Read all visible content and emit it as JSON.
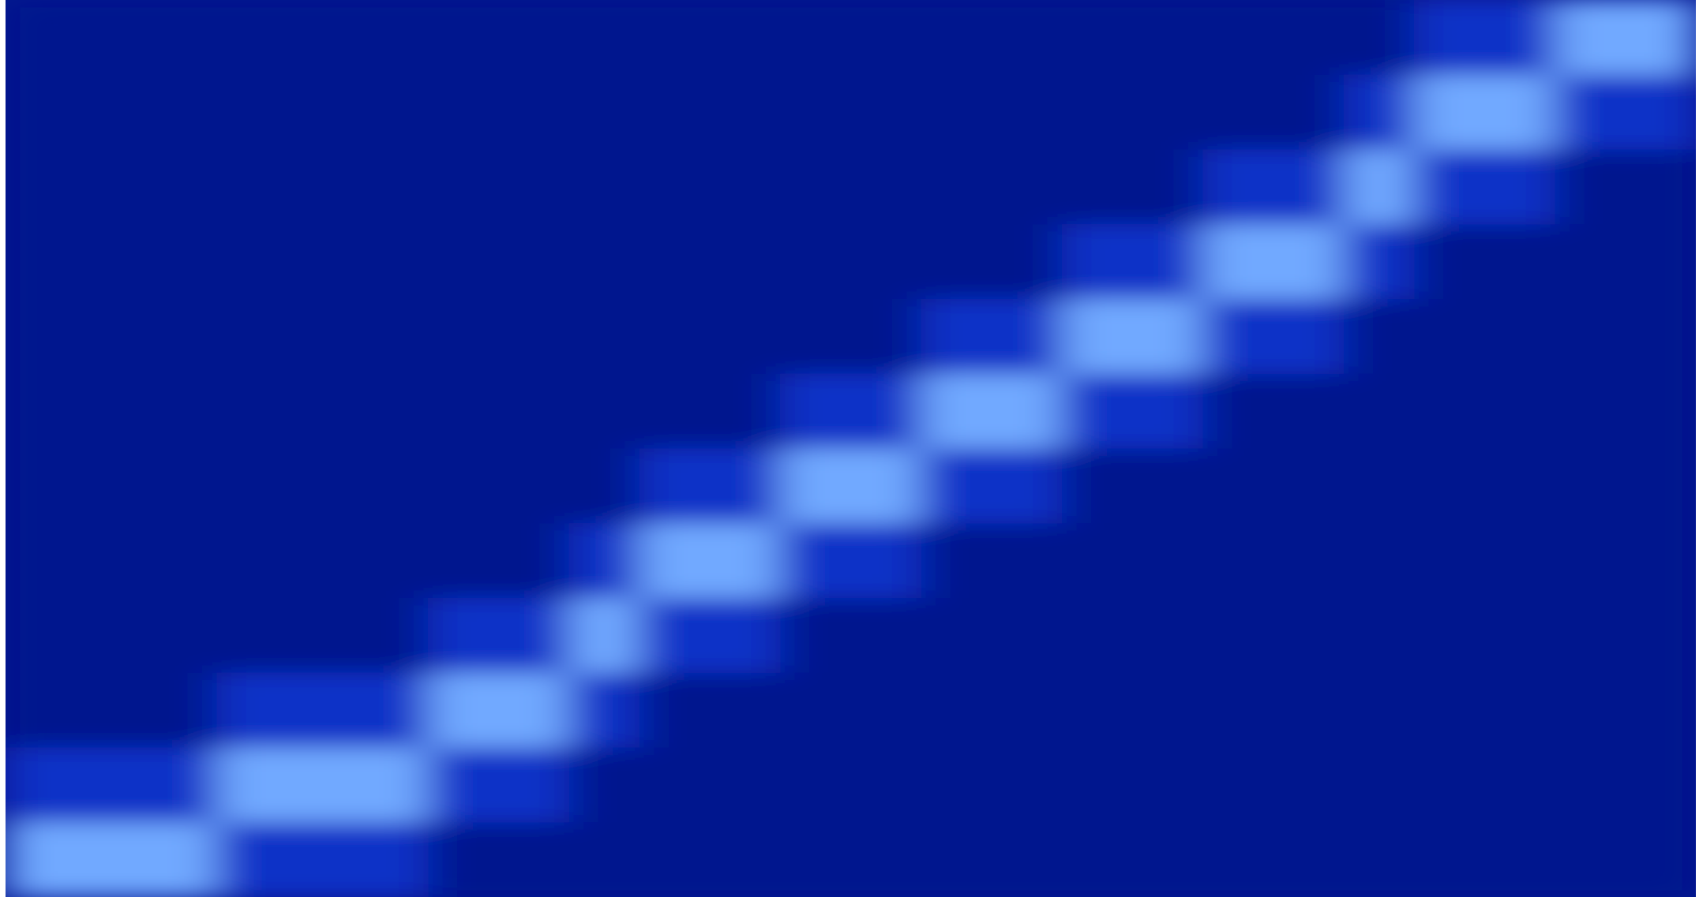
{
  "chart_data": {
    "type": "heatmap",
    "colorscale": [
      "#03148e",
      "#1f4dff",
      "#a8e6ff"
    ],
    "values": [
      [
        0,
        0,
        0,
        0,
        0,
        0,
        0,
        0,
        0,
        0,
        0,
        0,
        0,
        0,
        0,
        0,
        0,
        0,
        0,
        0,
        0.25,
        0.25,
        0.8,
        0.8
      ],
      [
        0,
        0,
        0,
        0,
        0,
        0,
        0,
        0,
        0,
        0,
        0,
        0,
        0,
        0,
        0,
        0,
        0,
        0,
        0,
        0.25,
        0.8,
        0.8,
        0.25,
        0.25
      ],
      [
        0,
        0,
        0,
        0,
        0,
        0,
        0,
        0,
        0,
        0,
        0,
        0,
        0,
        0,
        0,
        0,
        0,
        0.25,
        0.25,
        0.8,
        0.25,
        0.25,
        0,
        0
      ],
      [
        0,
        0,
        0,
        0,
        0,
        0,
        0,
        0,
        0,
        0,
        0,
        0,
        0,
        0,
        0,
        0.25,
        0.25,
        0.8,
        0.8,
        0.25,
        0,
        0,
        0,
        0
      ],
      [
        0,
        0,
        0,
        0,
        0,
        0,
        0,
        0,
        0,
        0,
        0,
        0,
        0,
        0.25,
        0.25,
        0.8,
        0.8,
        0.25,
        0.25,
        0,
        0,
        0,
        0,
        0
      ],
      [
        0,
        0,
        0,
        0,
        0,
        0,
        0,
        0,
        0,
        0,
        0,
        0.25,
        0.25,
        0.8,
        0.8,
        0.25,
        0.25,
        0,
        0,
        0,
        0,
        0,
        0,
        0
      ],
      [
        0,
        0,
        0,
        0,
        0,
        0,
        0,
        0,
        0,
        0.25,
        0.25,
        0.8,
        0.8,
        0.25,
        0.25,
        0,
        0,
        0,
        0,
        0,
        0,
        0,
        0,
        0
      ],
      [
        0,
        0,
        0,
        0,
        0,
        0,
        0,
        0,
        0.25,
        0.8,
        0.8,
        0.25,
        0.25,
        0,
        0,
        0,
        0,
        0,
        0,
        0,
        0,
        0,
        0,
        0
      ],
      [
        0,
        0,
        0,
        0,
        0,
        0,
        0.25,
        0.25,
        0.8,
        0.25,
        0.25,
        0,
        0,
        0,
        0,
        0,
        0,
        0,
        0,
        0,
        0,
        0,
        0,
        0
      ],
      [
        0,
        0,
        0,
        0.25,
        0.25,
        0.25,
        0.8,
        0.8,
        0.25,
        0,
        0,
        0,
        0,
        0,
        0,
        0,
        0,
        0,
        0,
        0,
        0,
        0,
        0,
        0
      ],
      [
        0.25,
        0.25,
        0.25,
        0.8,
        0.8,
        0.8,
        0.25,
        0.25,
        0,
        0,
        0,
        0,
        0,
        0,
        0,
        0,
        0,
        0,
        0,
        0,
        0,
        0,
        0,
        0
      ],
      [
        0.8,
        0.8,
        0.8,
        0.25,
        0.25,
        0.25,
        0,
        0,
        0,
        0,
        0,
        0,
        0,
        0,
        0,
        0,
        0,
        0,
        0,
        0,
        0,
        0,
        0,
        0
      ]
    ]
  }
}
